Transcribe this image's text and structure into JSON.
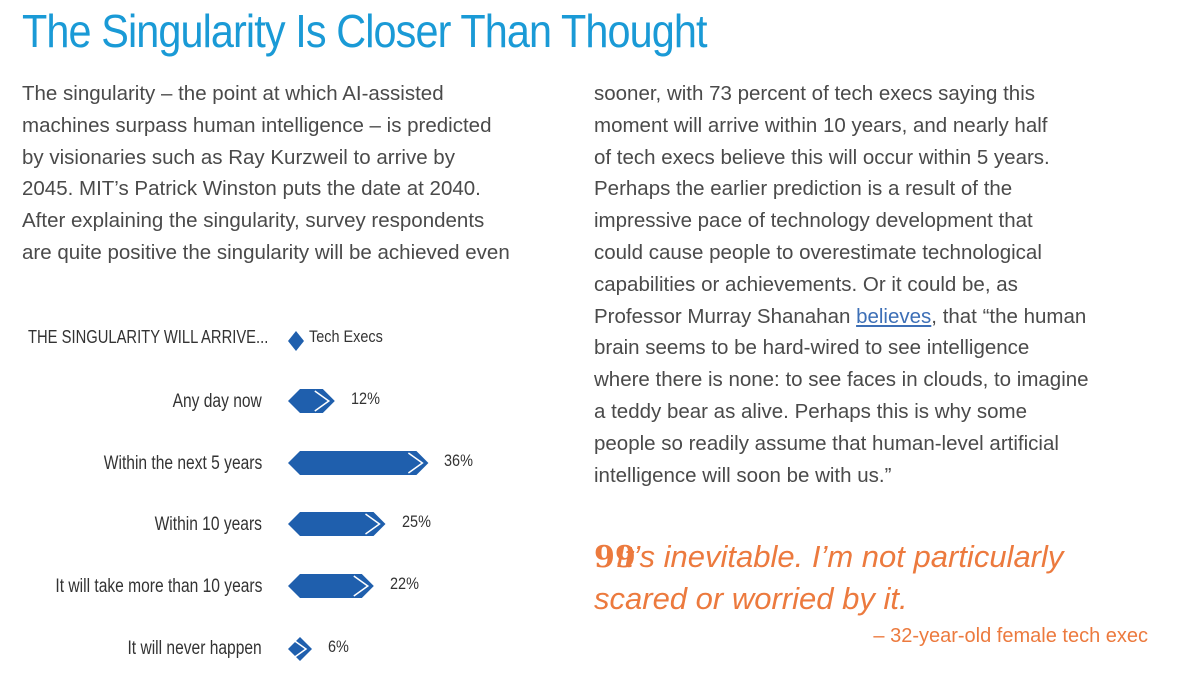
{
  "title": "The Singularity Is Closer Than Thought",
  "body_left": "The singularity – the point at which AI-assisted\nmachines surpass human intelligence – is predicted\nby visionaries such as Ray Kurzweil to arrive by\n2045. MIT’s Patrick Winston puts the date at 2040.\nAfter explaining the singularity, survey respondents\nare quite positive the singularity will be achieved even",
  "body_right_before_link": "sooner, with 73 percent of tech execs saying this\nmoment will arrive within 10 years, and nearly half\nof tech execs believe this will occur within 5 years.\nPerhaps the earlier prediction is a result of the\nimpressive pace of technology development that\ncould cause people to overestimate technological\ncapabilities or achievements. Or it could be, as\nProfessor Murray Shanahan ",
  "body_right_link": "believes",
  "body_right_after_link": ", that “the human\nbrain seems to be hard-wired to see intelligence\nwhere there is none: to see faces in clouds, to imagine\na teddy bear as alive. Perhaps this is why some\npeople so readily assume that human-level artificial\nintelligence will soon be with us.”",
  "quote": {
    "mark": "99",
    "text": "It’s inevitable. I’m not particularly\nscared or worried by it.",
    "attribution": "– 32-year-old female tech exec"
  },
  "colors": {
    "title": "#1a9ad6",
    "bar": "#1f5fad",
    "quote": "#ec7a3e",
    "link": "#3d6fb6"
  },
  "chart_data": {
    "type": "bar",
    "orientation": "horizontal",
    "title": "THE SINGULARITY WILL ARRIVE...",
    "legend": [
      {
        "name": "Tech Execs",
        "color": "#1f5fad",
        "marker": "diamond"
      }
    ],
    "categories": [
      "Any day now",
      "Within the next 5 years",
      "Within 10 years",
      "It will take more than 10 years",
      "It will never happen"
    ],
    "series": [
      {
        "name": "Tech Execs",
        "values": [
          12,
          36,
          25,
          22,
          6
        ]
      }
    ],
    "value_labels": [
      "12%",
      "36%",
      "25%",
      "22%",
      "6%"
    ],
    "unit": "%",
    "xlim": [
      0,
      40
    ]
  }
}
